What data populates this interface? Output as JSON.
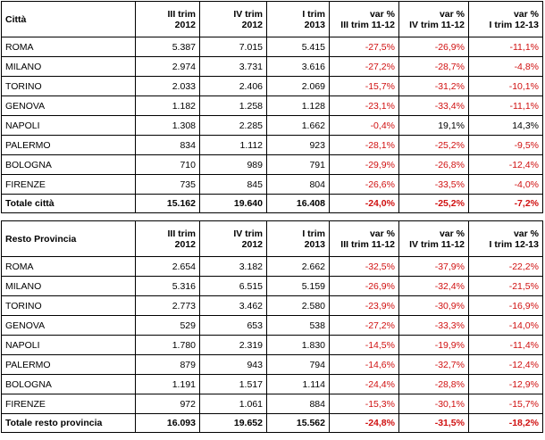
{
  "headers": {
    "col1": [
      "III trim",
      "2012"
    ],
    "col2": [
      "IV trim",
      "2012"
    ],
    "col3": [
      "I trim",
      "2013"
    ],
    "col4": [
      "var %",
      "III trim 11-12"
    ],
    "col5": [
      "var %",
      "IV trim 11-12"
    ],
    "col6": [
      "var %",
      "I trim 12-13"
    ]
  },
  "table1": {
    "title": "Città",
    "rows": [
      {
        "name": "ROMA",
        "v": [
          "5.387",
          "7.015",
          "5.415",
          "-27,5%",
          "-26,9%",
          "-11,1%"
        ]
      },
      {
        "name": "MILANO",
        "v": [
          "2.974",
          "3.731",
          "3.616",
          "-27,2%",
          "-28,7%",
          "-4,8%"
        ]
      },
      {
        "name": "TORINO",
        "v": [
          "2.033",
          "2.406",
          "2.069",
          "-15,7%",
          "-31,2%",
          "-10,1%"
        ]
      },
      {
        "name": "GENOVA",
        "v": [
          "1.182",
          "1.258",
          "1.128",
          "-23,1%",
          "-33,4%",
          "-11,1%"
        ]
      },
      {
        "name": "NAPOLI",
        "v": [
          "1.308",
          "2.285",
          "1.662",
          "-0,4%",
          "19,1%",
          "14,3%"
        ]
      },
      {
        "name": "PALERMO",
        "v": [
          "834",
          "1.112",
          "923",
          "-28,1%",
          "-25,2%",
          "-9,5%"
        ]
      },
      {
        "name": "BOLOGNA",
        "v": [
          "710",
          "989",
          "791",
          "-29,9%",
          "-26,8%",
          "-12,4%"
        ]
      },
      {
        "name": "FIRENZE",
        "v": [
          "735",
          "845",
          "804",
          "-26,6%",
          "-33,5%",
          "-4,0%"
        ]
      }
    ],
    "total": {
      "name": "Totale città",
      "v": [
        "15.162",
        "19.640",
        "16.408",
        "-24,0%",
        "-25,2%",
        "-7,2%"
      ]
    }
  },
  "table2": {
    "title": "Resto Provincia",
    "rows": [
      {
        "name": "ROMA",
        "v": [
          "2.654",
          "3.182",
          "2.662",
          "-32,5%",
          "-37,9%",
          "-22,2%"
        ]
      },
      {
        "name": "MILANO",
        "v": [
          "5.316",
          "6.515",
          "5.159",
          "-26,9%",
          "-32,4%",
          "-21,5%"
        ]
      },
      {
        "name": "TORINO",
        "v": [
          "2.773",
          "3.462",
          "2.580",
          "-23,9%",
          "-30,9%",
          "-16,9%"
        ]
      },
      {
        "name": "GENOVA",
        "v": [
          "529",
          "653",
          "538",
          "-27,2%",
          "-33,3%",
          "-14,0%"
        ]
      },
      {
        "name": "NAPOLI",
        "v": [
          "1.780",
          "2.319",
          "1.830",
          "-14,5%",
          "-19,9%",
          "-11,4%"
        ]
      },
      {
        "name": "PALERMO",
        "v": [
          "879",
          "943",
          "794",
          "-14,6%",
          "-32,7%",
          "-12,4%"
        ]
      },
      {
        "name": "BOLOGNA",
        "v": [
          "1.191",
          "1.517",
          "1.114",
          "-24,4%",
          "-28,8%",
          "-12,9%"
        ]
      },
      {
        "name": "FIRENZE",
        "v": [
          "972",
          "1.061",
          "884",
          "-15,3%",
          "-30,1%",
          "-15,7%"
        ]
      }
    ],
    "total": {
      "name": "Totale resto provincia",
      "v": [
        "16.093",
        "19.652",
        "15.562",
        "-24,8%",
        "-31,5%",
        "-18,2%"
      ]
    }
  },
  "colors": {
    "negative": "#d01010",
    "text": "#000000",
    "border": "#000000"
  }
}
